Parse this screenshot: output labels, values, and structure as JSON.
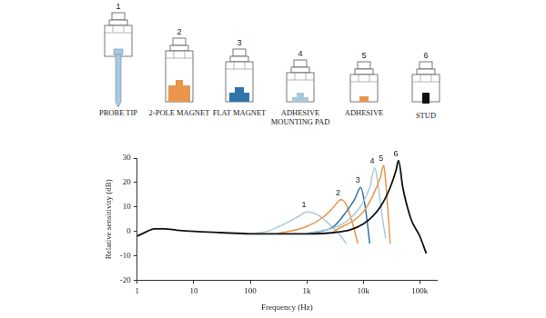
{
  "diagram": {
    "items": [
      {
        "number": "1",
        "label": [
          "PROBE TIP"
        ]
      },
      {
        "number": "2",
        "label": [
          "2-POLE MAGNET"
        ]
      },
      {
        "number": "3",
        "label": [
          "FLAT MAGNET"
        ]
      },
      {
        "number": "4",
        "label": [
          "ADHESIVE",
          "MOUNTING PAD"
        ]
      },
      {
        "number": "5",
        "label": [
          "ADHESIVE"
        ]
      },
      {
        "number": "6",
        "label": [
          "STUD"
        ]
      }
    ]
  },
  "chart_data": {
    "type": "line",
    "x_label": "Frequency (Hz)",
    "y_label": "Relative sensitivity (dB)",
    "log": "x",
    "grid": false,
    "xlim": [
      1,
      200000
    ],
    "xticks": [
      1,
      10,
      100,
      {
        "value": 1000,
        "label": "1k"
      },
      {
        "value": 10000,
        "label": "10k"
      },
      {
        "value": 100000,
        "label": "100k"
      }
    ],
    "ylim": [
      -20,
      30
    ],
    "yticks": [
      -20,
      -10,
      0,
      10,
      20,
      30
    ],
    "series": [
      {
        "name": "1",
        "color": "#a9c9de",
        "x": [
          100,
          200,
          400,
          700,
          1000,
          1500,
          2500,
          4000,
          5000
        ],
        "values": [
          -1,
          0,
          3,
          6,
          8,
          7,
          3,
          -2,
          -5
        ]
      },
      {
        "name": "2",
        "color": "#e9954c",
        "x": [
          300,
          1000,
          2000,
          3000,
          4000,
          5000,
          6500,
          8000
        ],
        "values": [
          -1,
          2,
          6,
          10,
          13,
          11,
          3,
          -5
        ]
      },
      {
        "name": "3",
        "color": "#2f74a9",
        "x": [
          1000,
          3000,
          5000,
          7000,
          9000,
          10500,
          12000,
          13000
        ],
        "values": [
          -1,
          2,
          8,
          13,
          18,
          12,
          2,
          -5
        ]
      },
      {
        "name": "4",
        "color": "#a9c9de",
        "x": [
          1000,
          5000,
          10000,
          13000,
          16000,
          18000,
          22000,
          25000
        ],
        "values": [
          -1,
          4,
          12,
          18,
          26,
          20,
          5,
          -3
        ]
      },
      {
        "name": "5",
        "color": "#e9954c",
        "x": [
          3000,
          10000,
          15000,
          20000,
          23000,
          25000,
          28000,
          30000
        ],
        "values": [
          0,
          8,
          15,
          22,
          27,
          20,
          5,
          -5
        ]
      },
      {
        "name": "6",
        "color": "#111111",
        "x": [
          1,
          1.5,
          2,
          3,
          5,
          10,
          30,
          100,
          1000,
          3000,
          10000,
          20000,
          30000,
          38000,
          42000,
          50000,
          70000,
          100000,
          130000
        ],
        "values": [
          -2,
          0,
          1,
          1,
          0.5,
          0,
          -0.5,
          -1,
          -1,
          -0.5,
          3,
          10,
          18,
          25,
          29,
          18,
          5,
          -2,
          -9
        ]
      }
    ]
  }
}
